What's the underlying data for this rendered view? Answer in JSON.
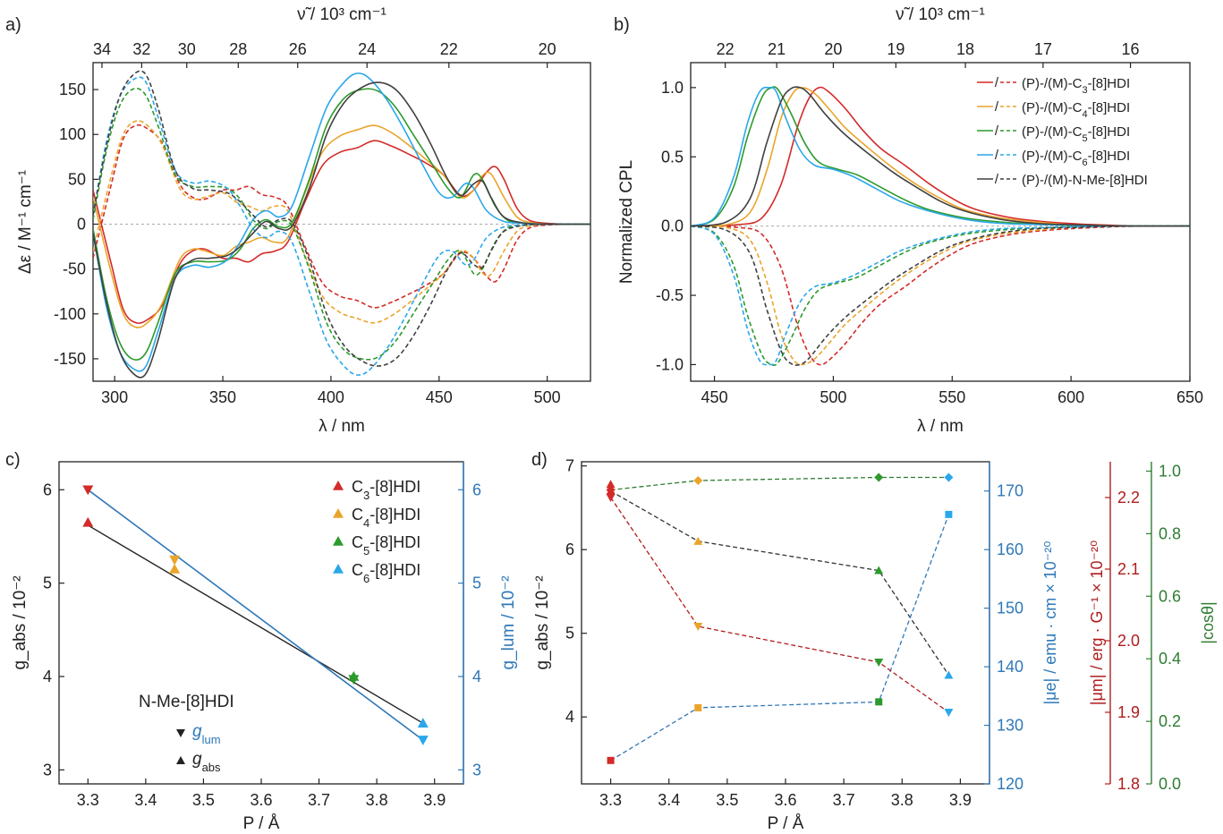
{
  "panels": {
    "a": {
      "tag": "a)"
    },
    "b": {
      "tag": "b)"
    },
    "c": {
      "tag": "c)"
    },
    "d": {
      "tag": "d)"
    }
  },
  "colors": {
    "C3": "#d42a2a",
    "C4": "#eaa42a",
    "C5": "#2c9a2c",
    "C6": "#2aa7ea",
    "NMe": "#404040",
    "blueAxis": "#2f78b8",
    "redAxis": "#b01c1c",
    "greenAxis": "#2e7d32"
  },
  "chart_data": [
    {
      "id": "a",
      "type": "line",
      "xlabel": "λ / nm",
      "ylabel": "Δε / M⁻¹ cm⁻¹",
      "top_xlabel": "ν̃ / 10³ cm⁻¹",
      "xlim": [
        290,
        520
      ],
      "ylim": [
        -175,
        180
      ],
      "xticks": [
        300,
        350,
        400,
        450,
        500
      ],
      "yticks": [
        -150,
        -100,
        -50,
        0,
        50,
        100,
        150
      ],
      "top_ticks": [
        34,
        32,
        30,
        28,
        26,
        24,
        22,
        20
      ],
      "series": [
        {
          "key": "C3",
          "x": [
            290,
            298,
            304,
            310,
            316,
            322,
            330,
            336,
            342,
            350,
            356,
            362,
            368,
            374,
            380,
            388,
            396,
            404,
            412,
            420,
            428,
            436,
            444,
            452,
            460,
            466,
            472,
            476,
            480,
            486,
            492,
            500,
            510,
            520
          ],
          "y": [
            38,
            -40,
            -95,
            -110,
            -105,
            -90,
            -45,
            -30,
            -28,
            -38,
            -38,
            -42,
            -33,
            -30,
            -20,
            25,
            65,
            80,
            85,
            93,
            87,
            78,
            68,
            55,
            32,
            38,
            58,
            64,
            50,
            18,
            4,
            1,
            0,
            0
          ]
        },
        {
          "key": "C4",
          "x": [
            290,
            298,
            304,
            310,
            316,
            322,
            330,
            336,
            342,
            350,
            356,
            362,
            368,
            374,
            380,
            388,
            396,
            404,
            412,
            420,
            428,
            436,
            444,
            452,
            460,
            466,
            470,
            474,
            480,
            486,
            492,
            500,
            510,
            520
          ],
          "y": [
            30,
            -50,
            -100,
            -115,
            -108,
            -88,
            -40,
            -28,
            -30,
            -35,
            -25,
            -20,
            -15,
            -20,
            -15,
            35,
            80,
            98,
            105,
            110,
            102,
            88,
            72,
            55,
            30,
            38,
            54,
            56,
            30,
            8,
            2,
            0,
            0,
            0
          ]
        },
        {
          "key": "C5",
          "x": [
            290,
            296,
            302,
            308,
            314,
            320,
            328,
            336,
            344,
            352,
            358,
            364,
            370,
            376,
            382,
            390,
            398,
            406,
            414,
            422,
            430,
            438,
            446,
            454,
            460,
            466,
            470,
            476,
            482,
            490,
            500,
            510,
            520
          ],
          "y": [
            -5,
            -80,
            -130,
            -150,
            -145,
            -110,
            -55,
            -42,
            -42,
            -40,
            -28,
            -5,
            5,
            -3,
            2,
            50,
            110,
            140,
            150,
            148,
            130,
            100,
            70,
            40,
            30,
            55,
            50,
            20,
            4,
            1,
            0,
            0,
            0
          ]
        },
        {
          "key": "C6",
          "x": [
            290,
            296,
            302,
            308,
            314,
            320,
            328,
            336,
            344,
            352,
            358,
            364,
            370,
            376,
            382,
            390,
            398,
            406,
            412,
            418,
            426,
            434,
            442,
            450,
            456,
            462,
            466,
            472,
            480,
            490,
            500,
            510,
            520
          ],
          "y": [
            -10,
            -90,
            -140,
            -160,
            -160,
            -120,
            -60,
            -46,
            -48,
            -40,
            -20,
            5,
            15,
            8,
            20,
            75,
            130,
            158,
            168,
            162,
            138,
            105,
            68,
            35,
            30,
            45,
            40,
            15,
            3,
            1,
            0,
            0,
            0
          ]
        },
        {
          "key": "NMe",
          "x": [
            290,
            296,
            302,
            308,
            314,
            320,
            328,
            336,
            344,
            352,
            358,
            364,
            370,
            376,
            382,
            390,
            398,
            406,
            414,
            422,
            430,
            438,
            446,
            454,
            460,
            466,
            470,
            474,
            480,
            490,
            500,
            510,
            520
          ],
          "y": [
            -10,
            -85,
            -140,
            -165,
            -168,
            -130,
            -60,
            -40,
            -38,
            -35,
            -25,
            -10,
            3,
            -5,
            -2,
            40,
            100,
            135,
            152,
            158,
            150,
            125,
            90,
            50,
            32,
            45,
            48,
            30,
            8,
            1,
            0,
            0,
            0
          ]
        }
      ]
    },
    {
      "id": "b",
      "type": "line",
      "xlabel": "λ / nm",
      "ylabel": "Normalized CPL",
      "top_xlabel": "ν̃ / 10³ cm⁻¹",
      "xlim": [
        440,
        650
      ],
      "ylim": [
        -1.12,
        1.18
      ],
      "xticks": [
        450,
        500,
        550,
        600,
        650
      ],
      "yticks": [
        -1.0,
        -0.5,
        0.0,
        0.5,
        1.0
      ],
      "top_ticks": [
        22,
        21,
        20,
        19,
        18,
        17,
        16
      ],
      "series": [
        {
          "key": "C3",
          "x": [
            440,
            460,
            470,
            478,
            485,
            490,
            494,
            498,
            505,
            512,
            520,
            530,
            540,
            550,
            560,
            575,
            590,
            610,
            630,
            650
          ],
          "y": [
            0,
            0.01,
            0.06,
            0.3,
            0.72,
            0.93,
            1.0,
            0.97,
            0.85,
            0.7,
            0.56,
            0.44,
            0.31,
            0.2,
            0.12,
            0.06,
            0.03,
            0.01,
            0,
            0
          ]
        },
        {
          "key": "C4",
          "x": [
            440,
            455,
            465,
            472,
            478,
            483,
            487,
            492,
            498,
            505,
            515,
            525,
            535,
            545,
            555,
            570,
            585,
            600,
            625,
            650
          ],
          "y": [
            0,
            0.01,
            0.1,
            0.4,
            0.78,
            0.96,
            1.0,
            0.96,
            0.85,
            0.71,
            0.56,
            0.42,
            0.3,
            0.2,
            0.12,
            0.06,
            0.03,
            0.01,
            0,
            0
          ]
        },
        {
          "key": "C5",
          "x": [
            440,
            450,
            458,
            464,
            470,
            474,
            477,
            482,
            488,
            494,
            502,
            510,
            520,
            530,
            540,
            555,
            570,
            590,
            620,
            650
          ],
          "y": [
            0,
            0.05,
            0.28,
            0.65,
            0.93,
            1.0,
            0.98,
            0.82,
            0.6,
            0.46,
            0.41,
            0.37,
            0.28,
            0.19,
            0.12,
            0.06,
            0.03,
            0.01,
            0,
            0
          ]
        },
        {
          "key": "C6",
          "x": [
            440,
            450,
            458,
            464,
            469,
            473,
            476,
            480,
            486,
            492,
            500,
            508,
            518,
            528,
            540,
            555,
            570,
            590,
            620,
            650
          ],
          "y": [
            0,
            0.06,
            0.35,
            0.75,
            0.97,
            1.0,
            0.97,
            0.78,
            0.55,
            0.44,
            0.41,
            0.36,
            0.27,
            0.18,
            0.11,
            0.05,
            0.02,
            0.01,
            0,
            0
          ]
        },
        {
          "key": "NMe",
          "x": [
            440,
            455,
            465,
            472,
            478,
            482,
            486,
            490,
            497,
            505,
            515,
            525,
            535,
            545,
            555,
            570,
            585,
            600,
            625,
            650
          ],
          "y": [
            0,
            0.03,
            0.2,
            0.6,
            0.9,
            0.99,
            1.0,
            0.95,
            0.8,
            0.66,
            0.52,
            0.39,
            0.28,
            0.18,
            0.11,
            0.05,
            0.02,
            0.01,
            0,
            0
          ]
        }
      ],
      "legend": {
        "placement": "top-right",
        "slash": "/",
        "entries": [
          {
            "key": "C3",
            "pre": "(P)-/(M)-C",
            "sub": "3",
            "post": "-[8]HDI"
          },
          {
            "key": "C4",
            "pre": "(P)-/(M)-C",
            "sub": "4",
            "post": "-[8]HDI"
          },
          {
            "key": "C5",
            "pre": "(P)-/(M)-C",
            "sub": "5",
            "post": "-[8]HDI"
          },
          {
            "key": "C6",
            "pre": "(P)-/(M)-C",
            "sub": "6",
            "post": "-[8]HDI"
          },
          {
            "key": "NMe",
            "pre": "(P)-/(M)-N-Me-[8]HDI",
            "sub": "",
            "post": ""
          }
        ]
      }
    },
    {
      "id": "c",
      "type": "scatter",
      "xlabel": "P / Å",
      "ylabel_left": "g_abs / 10⁻²",
      "ylabel_right": "g_lum / 10⁻²",
      "xlim": [
        3.25,
        3.95
      ],
      "ylim": [
        2.85,
        6.3
      ],
      "xticks": [
        3.3,
        3.4,
        3.5,
        3.6,
        3.7,
        3.8,
        3.9
      ],
      "yticks": [
        3,
        4,
        5,
        6
      ],
      "points": [
        {
          "key": "C3",
          "x": 3.3,
          "g_abs": 5.65,
          "g_lum": 6.0
        },
        {
          "key": "C4",
          "x": 3.45,
          "g_abs": 5.15,
          "g_lum": 5.25
        },
        {
          "key": "C5",
          "x": 3.76,
          "g_abs": 4.0,
          "g_lum": 3.97
        },
        {
          "key": "C6",
          "x": 3.88,
          "g_abs": 3.5,
          "g_lum": 3.32
        }
      ],
      "fit_abs": {
        "x": [
          3.3,
          3.88
        ],
        "y": [
          5.62,
          3.5
        ]
      },
      "fit_lum": {
        "x": [
          3.3,
          3.88
        ],
        "y": [
          6.0,
          3.32
        ]
      },
      "legend": [
        {
          "key": "C3",
          "pre": "C",
          "sub": "3",
          "post": "-[8]HDI"
        },
        {
          "key": "C4",
          "pre": "C",
          "sub": "4",
          "post": "-[8]HDI"
        },
        {
          "key": "C5",
          "pre": "C",
          "sub": "5",
          "post": "-[8]HDI"
        },
        {
          "key": "C6",
          "pre": "C",
          "sub": "6",
          "post": "-[8]HDI"
        }
      ],
      "annotation": {
        "title": "N-Me-[8]HDI",
        "lum": "g",
        "lum_sub": "lum",
        "abs": "g",
        "abs_sub": "abs"
      }
    },
    {
      "id": "d",
      "type": "scatter",
      "xlabel": "P / Å",
      "ylabel_left": "g_abs / 10⁻²",
      "ylabel_blue": "|μe| / emu · cm × 10⁻²⁰",
      "ylabel_red": "|μm| / erg · G⁻¹ × 10⁻²⁰",
      "ylabel_green": "|cosθ|",
      "xlim": [
        3.25,
        3.95
      ],
      "xticks": [
        3.3,
        3.4,
        3.5,
        3.6,
        3.7,
        3.8,
        3.9
      ],
      "axes": {
        "g_abs": {
          "lim": [
            3.2,
            7.05
          ],
          "ticks": [
            4,
            5,
            6,
            7
          ]
        },
        "mu_e": {
          "lim": [
            120,
            175
          ],
          "ticks": [
            120,
            130,
            140,
            150,
            160,
            170
          ]
        },
        "mu_m": {
          "lim": [
            1.8,
            2.25
          ],
          "ticks": [
            1.8,
            1.9,
            2.0,
            2.1,
            2.2
          ]
        },
        "cos": {
          "lim": [
            0.0,
            1.03
          ],
          "ticks": [
            0.0,
            0.2,
            0.4,
            0.6,
            0.8,
            1.0
          ]
        }
      },
      "x": [
        3.3,
        3.45,
        3.76,
        3.88
      ],
      "colors_by_point": [
        "C3",
        "C4",
        "C5",
        "C6"
      ],
      "g_abs": [
        6.7,
        6.1,
        5.75,
        4.5
      ],
      "mu_e": [
        124,
        133,
        134,
        166
      ],
      "mu_m": [
        2.2,
        2.02,
        1.97,
        1.9
      ],
      "cos": [
        0.94,
        0.97,
        0.98,
        0.98
      ],
      "g_abs_extra": 6.78
    }
  ]
}
